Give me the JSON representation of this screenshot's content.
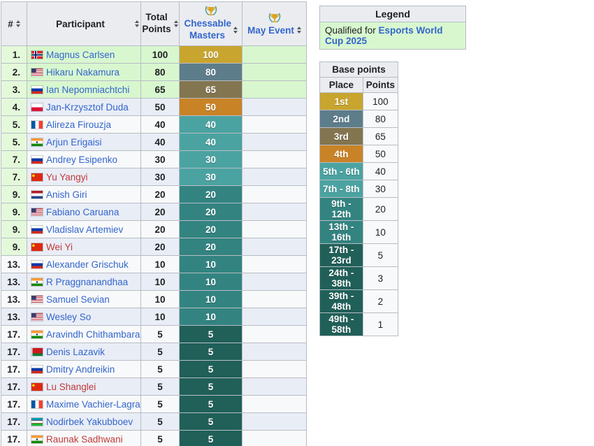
{
  "colors": {
    "header_bg": "#eaecf0",
    "q_green": "#d8f7cf",
    "rank_green": "#e4f9da",
    "row_alt": "#e9edf6",
    "row_plain": "#f8f9fa",
    "link_blue": "#3366cc",
    "link_red": "#c03a3a",
    "tier_p1": "#c8a52e",
    "tier_p2": "#5d7d8b",
    "tier_p3": "#837550",
    "tier_p4": "#c98327",
    "tier_t40": "#4ba3a1",
    "tier_t20": "#338481",
    "tier_t5": "#206059"
  },
  "table": {
    "headers": {
      "rank": "#",
      "participant": "Participant",
      "total": "Total Points",
      "chessable": "Chessable Masters",
      "may": "May Event"
    },
    "rows": [
      {
        "rank": "1.",
        "name": "Magnus Carlsen",
        "country": "no",
        "red": false,
        "total": "100",
        "chessable": "100",
        "tier": "p1",
        "qualified": true,
        "rank_green": true
      },
      {
        "rank": "2.",
        "name": "Hikaru Nakamura",
        "country": "us",
        "red": false,
        "total": "80",
        "chessable": "80",
        "tier": "p2",
        "qualified": true,
        "rank_green": true
      },
      {
        "rank": "3.",
        "name": "Ian Nepomniachtchi",
        "country": "ru",
        "red": false,
        "total": "65",
        "chessable": "65",
        "tier": "p3",
        "qualified": true,
        "rank_green": true
      },
      {
        "rank": "4.",
        "name": "Jan-Krzysztof Duda",
        "country": "pl",
        "red": false,
        "total": "50",
        "chessable": "50",
        "tier": "p4",
        "qualified": false,
        "rank_green": true
      },
      {
        "rank": "5.",
        "name": "Alireza Firouzja",
        "country": "fr",
        "red": false,
        "total": "40",
        "chessable": "40",
        "tier": "t40",
        "qualified": false,
        "rank_green": true
      },
      {
        "rank": "5.",
        "name": "Arjun Erigaisi",
        "country": "in",
        "red": false,
        "total": "40",
        "chessable": "40",
        "tier": "t40",
        "qualified": false,
        "rank_green": true
      },
      {
        "rank": "7.",
        "name": "Andrey Esipenko",
        "country": "ru",
        "red": false,
        "total": "30",
        "chessable": "30",
        "tier": "t40",
        "qualified": false,
        "rank_green": true
      },
      {
        "rank": "7.",
        "name": "Yu Yangyi",
        "country": "cn",
        "red": true,
        "total": "30",
        "chessable": "30",
        "tier": "t40",
        "qualified": false,
        "rank_green": true
      },
      {
        "rank": "9.",
        "name": "Anish Giri",
        "country": "nl",
        "red": false,
        "total": "20",
        "chessable": "20",
        "tier": "t20",
        "qualified": false,
        "rank_green": true
      },
      {
        "rank": "9.",
        "name": "Fabiano Caruana",
        "country": "us",
        "red": false,
        "total": "20",
        "chessable": "20",
        "tier": "t20",
        "qualified": false,
        "rank_green": true
      },
      {
        "rank": "9.",
        "name": "Vladislav Artemiev",
        "country": "ru",
        "red": false,
        "total": "20",
        "chessable": "20",
        "tier": "t20",
        "qualified": false,
        "rank_green": true
      },
      {
        "rank": "9.",
        "name": "Wei Yi",
        "country": "cn",
        "red": true,
        "total": "20",
        "chessable": "20",
        "tier": "t20",
        "qualified": false,
        "rank_green": true
      },
      {
        "rank": "13.",
        "name": "Alexander Grischuk",
        "country": "ru",
        "red": false,
        "total": "10",
        "chessable": "10",
        "tier": "t20",
        "qualified": false,
        "rank_green": false
      },
      {
        "rank": "13.",
        "name": "R Praggnanandhaa",
        "country": "in",
        "red": false,
        "total": "10",
        "chessable": "10",
        "tier": "t20",
        "qualified": false,
        "rank_green": false
      },
      {
        "rank": "13.",
        "name": "Samuel Sevian",
        "country": "us",
        "red": false,
        "total": "10",
        "chessable": "10",
        "tier": "t20",
        "qualified": false,
        "rank_green": false
      },
      {
        "rank": "13.",
        "name": "Wesley So",
        "country": "us",
        "red": false,
        "total": "10",
        "chessable": "10",
        "tier": "t20",
        "qualified": false,
        "rank_green": false
      },
      {
        "rank": "17.",
        "name": "Aravindh Chithambaram",
        "country": "in",
        "red": false,
        "total": "5",
        "chessable": "5",
        "tier": "t5",
        "qualified": false,
        "rank_green": false
      },
      {
        "rank": "17.",
        "name": "Denis Lazavik",
        "country": "by",
        "red": false,
        "total": "5",
        "chessable": "5",
        "tier": "t5",
        "qualified": false,
        "rank_green": false
      },
      {
        "rank": "17.",
        "name": "Dmitry Andreikin",
        "country": "ru",
        "red": false,
        "total": "5",
        "chessable": "5",
        "tier": "t5",
        "qualified": false,
        "rank_green": false
      },
      {
        "rank": "17.",
        "name": "Lu Shanglei",
        "country": "cn",
        "red": true,
        "total": "5",
        "chessable": "5",
        "tier": "t5",
        "qualified": false,
        "rank_green": false
      },
      {
        "rank": "17.",
        "name": "Maxime Vachier-Lagrave",
        "country": "fr",
        "red": false,
        "total": "5",
        "chessable": "5",
        "tier": "t5",
        "qualified": false,
        "rank_green": false
      },
      {
        "rank": "17.",
        "name": "Nodirbek Yakubboev",
        "country": "uz",
        "red": false,
        "total": "5",
        "chessable": "5",
        "tier": "t5",
        "qualified": false,
        "rank_green": false
      },
      {
        "rank": "17.",
        "name": "Raunak Sadhwani",
        "country": "in",
        "red": true,
        "total": "5",
        "chessable": "5",
        "tier": "t5",
        "qualified": false,
        "rank_green": false
      }
    ]
  },
  "legend": {
    "title": "Legend",
    "qualified_prefix": "Qualified for ",
    "qualified_link": "Esports World Cup 2025"
  },
  "base_points": {
    "title": "Base points",
    "col_place": "Place",
    "col_points": "Points",
    "rows": [
      {
        "place": "1st",
        "points": "100",
        "tier": "p1"
      },
      {
        "place": "2nd",
        "points": "80",
        "tier": "p2"
      },
      {
        "place": "3rd",
        "points": "65",
        "tier": "p3"
      },
      {
        "place": "4th",
        "points": "50",
        "tier": "p4"
      },
      {
        "place": "5th - 6th",
        "points": "40",
        "tier": "t40"
      },
      {
        "place": "7th - 8th",
        "points": "30",
        "tier": "t40"
      },
      {
        "place": "9th - 12th",
        "points": "20",
        "tier": "t20"
      },
      {
        "place": "13th - 16th",
        "points": "10",
        "tier": "t20"
      },
      {
        "place": "17th - 23rd",
        "points": "5",
        "tier": "t5"
      },
      {
        "place": "24th - 38th",
        "points": "3",
        "tier": "t5"
      },
      {
        "place": "39th - 48th",
        "points": "2",
        "tier": "t5"
      },
      {
        "place": "49th - 58th",
        "points": "1",
        "tier": "t5"
      }
    ]
  }
}
